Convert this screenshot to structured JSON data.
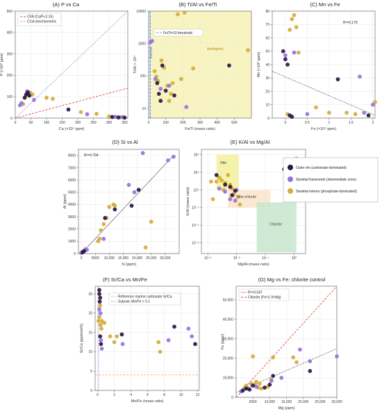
{
  "colors": {
    "outer": "#2b1747",
    "framework": "#9274e0",
    "interior": "#d4ad3c",
    "cfa": "#e0453c",
    "stoich": "#6b6bd8",
    "threshold": "#4f6fd4",
    "authigenic_fill": "#f6f2b6",
    "illite_fill": "#f3f19a",
    "illite_chlorite_fill": "#fbe3c8",
    "chlorite_fill": "#c6e5cd",
    "trend": "#444444",
    "ref": "#f0a040"
  },
  "chart_data": [
    {
      "id": "A",
      "type": "scatter",
      "title": "(A) P vs Ca",
      "xlabel": "Ca (×10⁴ ppm)",
      "ylabel": "P (×10³ ppm)",
      "xlim": [
        0,
        360
      ],
      "ylim": [
        0,
        500
      ],
      "xticks": [
        "0",
        "50",
        "100",
        "150",
        "200",
        "250",
        "300",
        "350"
      ],
      "yticks": [
        "0",
        "100",
        "200",
        "300",
        "400",
        "500"
      ],
      "legend": [
        "CFA (Ca/P≈2.15)",
        "CCA stoichiometric"
      ],
      "points": {
        "outer": [
          [
            30,
            95
          ],
          [
            35,
            110
          ],
          [
            40,
            120
          ],
          [
            45,
            105
          ],
          [
            170,
            40
          ],
          [
            310,
            5
          ],
          [
            330,
            3
          ],
          [
            350,
            2
          ]
        ],
        "framework": [
          [
            15,
            60
          ],
          [
            20,
            70
          ],
          [
            38,
            125
          ],
          [
            42,
            115
          ],
          [
            60,
            85
          ],
          [
            230,
            18
          ],
          [
            320,
            6
          ],
          [
            340,
            4
          ]
        ],
        "interior": [
          [
            25,
            65
          ],
          [
            32,
            100
          ],
          [
            36,
            112
          ],
          [
            44,
            120
          ],
          [
            48,
            118
          ],
          [
            55,
            110
          ],
          [
            100,
            95
          ],
          [
            120,
            90
          ],
          [
            210,
            28
          ],
          [
            260,
            20
          ],
          [
            300,
            8
          ],
          [
            345,
            5
          ]
        ]
      }
    },
    {
      "id": "B",
      "type": "scatter",
      "title": "(B) Ti/Al vs Fe/Ti",
      "xlabel": "Fe/Ti (mass ratio)",
      "ylabel": "Ti/Al × 10⁴",
      "xlim": [
        0,
        600
      ],
      "ylim": [
        5,
        10000
      ],
      "yscale": "log",
      "xticks": [
        "0",
        "100",
        "200",
        "300",
        "400",
        "500"
      ],
      "yticks": [
        "10",
        "100",
        "1000",
        "10000"
      ],
      "legend": [
        "Fe/Ti=10 threshold"
      ],
      "regions": [
        "Detrital",
        "Authigenic"
      ],
      "points": {
        "outer": [
          [
            50,
            60
          ],
          [
            60,
            28
          ],
          [
            70,
            17
          ],
          [
            80,
            210
          ],
          [
            100,
            35
          ],
          [
            150,
            25
          ],
          [
            470,
            210
          ]
        ],
        "framework": [
          [
            10,
            1100
          ],
          [
            20,
            1200
          ],
          [
            40,
            80
          ],
          [
            70,
            40
          ],
          [
            120,
            50
          ],
          [
            220,
            11
          ]
        ],
        "interior": [
          [
            35,
            140
          ],
          [
            45,
            95
          ],
          [
            55,
            70
          ],
          [
            75,
            300
          ],
          [
            90,
            180
          ],
          [
            110,
            50
          ],
          [
            120,
            17
          ],
          [
            130,
            28
          ],
          [
            140,
            60
          ],
          [
            170,
            8000
          ],
          [
            190,
            80
          ],
          [
            210,
            9000
          ],
          [
            260,
            170
          ],
          [
            580,
            620
          ]
        ]
      }
    },
    {
      "id": "C",
      "type": "scatter",
      "title": "(C) Mn vs Fe",
      "xlabel": "Fe (×10⁴ ppm)",
      "ylabel": "Mn (×10³ ppm)",
      "xlim": [
        -0.3,
        2.05
      ],
      "ylim": [
        0,
        80
      ],
      "xticks": [
        "0",
        "0.5",
        "1",
        "1.5",
        "2"
      ],
      "yticks": [
        "0",
        "10",
        "20",
        "30",
        "40",
        "50",
        "60",
        "70",
        "80"
      ],
      "r2": "R²=0.179",
      "points": {
        "outer": [
          [
            -0.05,
            50
          ],
          [
            0,
            44
          ],
          [
            0.05,
            40
          ],
          [
            0.1,
            2
          ],
          [
            0.15,
            1
          ],
          [
            1.2,
            29
          ],
          [
            1.9,
            2
          ]
        ],
        "framework": [
          [
            0,
            47
          ],
          [
            0.2,
            49
          ],
          [
            1.7,
            31
          ],
          [
            2.0,
            10
          ],
          [
            1.8,
            4
          ],
          [
            0.5,
            3
          ]
        ],
        "interior": [
          [
            0.05,
            3
          ],
          [
            0.1,
            66
          ],
          [
            0.15,
            74
          ],
          [
            0.2,
            77
          ],
          [
            0.25,
            68
          ],
          [
            0.3,
            49
          ],
          [
            0.7,
            8
          ],
          [
            1.0,
            4
          ],
          [
            1.4,
            4
          ],
          [
            1.6,
            3
          ],
          [
            2.05,
            12
          ]
        ]
      }
    },
    {
      "id": "D",
      "type": "scatter",
      "title": "(D) Si vs Al",
      "xlabel": "Si (ppm)",
      "ylabel": "Al (ppm)",
      "xlim": [
        -1000,
        35000
      ],
      "ylim": [
        0,
        8500
      ],
      "xticks": [
        "0",
        "5000",
        "10,000",
        "15,000",
        "20,000",
        "25,000",
        "30,000"
      ],
      "yticks": [
        "0",
        "1000",
        "2000",
        "3000",
        "4000",
        "5000",
        "6000",
        "7000",
        "8000"
      ],
      "r2": "R²=0.704",
      "points": {
        "outer": [
          [
            500,
            100
          ],
          [
            1000,
            200
          ],
          [
            8500,
            2900
          ],
          [
            12000,
            3600
          ],
          [
            18000,
            3900
          ],
          [
            20500,
            5200
          ]
        ],
        "framework": [
          [
            0,
            50
          ],
          [
            500,
            150
          ],
          [
            1500,
            350
          ],
          [
            2000,
            300
          ],
          [
            8000,
            1200
          ],
          [
            17000,
            5600
          ],
          [
            19000,
            5000
          ],
          [
            22000,
            8200
          ],
          [
            31000,
            7600
          ],
          [
            33000,
            7900
          ]
        ],
        "interior": [
          [
            300,
            80
          ],
          [
            800,
            150
          ],
          [
            6000,
            1000
          ],
          [
            6500,
            1200
          ],
          [
            7000,
            1900
          ],
          [
            8000,
            2400
          ],
          [
            9000,
            2900
          ],
          [
            10000,
            3800
          ],
          [
            11500,
            4000
          ],
          [
            12000,
            3900
          ],
          [
            23000,
            500
          ],
          [
            25000,
            2600
          ]
        ]
      }
    },
    {
      "id": "E",
      "type": "scatter",
      "title": "(E) K/Al vs Mg/Al",
      "xlabel": "Mg/Al (mass ratio)",
      "ylabel": "K/Al (mass ratio)",
      "xscale": "log",
      "yscale": "log",
      "xlim": [
        0.0006,
        2.5
      ],
      "ylim": [
        0.00025,
        200
      ],
      "xticks": [
        "10⁻³",
        "10⁻²",
        "10⁻¹",
        "10⁰"
      ],
      "yticks": [
        "10⁻³",
        "10⁻²",
        "10⁻¹",
        "10⁰",
        "10¹",
        "10²"
      ],
      "regions": [
        "Illite",
        "Illite-chlorite",
        "Chlorite"
      ],
      "legend": [
        "Outer rim (carbonate-dominated)",
        "Skeletal framework (intermediate zone)",
        "Skeletal interior (phosphate-dominated)"
      ],
      "points": {
        "outer": [
          [
            0.002,
            7
          ],
          [
            0.004,
            2
          ],
          [
            0.006,
            1.5
          ],
          [
            0.007,
            0.5
          ],
          [
            0.009,
            0.9
          ],
          [
            0.45,
            15
          ]
        ],
        "framework": [
          [
            0.0025,
            1.2
          ],
          [
            0.004,
            0.8
          ],
          [
            0.006,
            0.3
          ],
          [
            0.01,
            1
          ],
          [
            0.009,
            0.25
          ]
        ],
        "interior": [
          [
            0.0013,
            3
          ],
          [
            0.0015,
            0.3
          ],
          [
            0.002,
            3
          ],
          [
            0.0025,
            5
          ],
          [
            0.003,
            3.5
          ],
          [
            0.0035,
            1
          ],
          [
            0.004,
            2.5
          ],
          [
            0.005,
            7
          ],
          [
            0.006,
            2
          ],
          [
            0.007,
            1.2
          ],
          [
            0.008,
            0.6
          ],
          [
            0.011,
            0.4
          ],
          [
            0.013,
            0.15
          ],
          [
            0.8,
            30
          ],
          [
            1.2,
            60
          ]
        ]
      }
    },
    {
      "id": "F",
      "type": "scatter",
      "title": "(F) Sr/Ca vs Mn/Fe",
      "xlabel": "Mn/Fe (mass ratio)",
      "ylabel": "Sr/Ca (ppm/wt%)",
      "xlim": [
        -0.3,
        12.2
      ],
      "ylim": [
        0,
        27
      ],
      "xticks": [
        "0",
        "2",
        "4",
        "6",
        "8",
        "10",
        "12"
      ],
      "yticks": [
        "0",
        "5",
        "10",
        "15",
        "20",
        "25"
      ],
      "legend": [
        "Reference marine carbonate Sr/Ca",
        "Suboxic Mn/Fe > 0.1"
      ],
      "points": {
        "outer": [
          [
            0.2,
            26
          ],
          [
            0.2,
            25
          ],
          [
            0.3,
            24
          ],
          [
            0.25,
            23
          ],
          [
            0.3,
            14
          ],
          [
            0.4,
            12
          ],
          [
            2.9,
            14.5
          ],
          [
            9.2,
            16.5
          ],
          [
            11.7,
            12
          ]
        ],
        "framework": [
          [
            0.2,
            21
          ],
          [
            0.35,
            20
          ],
          [
            0.4,
            13
          ],
          [
            0.5,
            10.8
          ],
          [
            3.0,
            12
          ],
          [
            8.5,
            13
          ],
          [
            10.9,
            16
          ],
          [
            11.3,
            14
          ]
        ],
        "interior": [
          [
            0.1,
            18
          ],
          [
            0.2,
            19
          ],
          [
            0.3,
            22
          ],
          [
            0.35,
            17
          ],
          [
            0.45,
            16
          ],
          [
            0.5,
            18
          ],
          [
            0.8,
            17.5
          ],
          [
            1.5,
            14
          ],
          [
            2.0,
            12.5
          ],
          [
            2.3,
            14
          ],
          [
            7.3,
            12.5
          ],
          [
            7.5,
            10
          ]
        ]
      },
      "refs": {
        "srca": 4,
        "mnfe": 0.1
      }
    },
    {
      "id": "G",
      "type": "scatter",
      "title": "(G) Mg vs Fe: chlorite control",
      "xlabel": "Mg (ppm)",
      "ylabel": "Fe (ppm)",
      "xlim": [
        0,
        30000
      ],
      "ylim": [
        0,
        57000
      ],
      "xticks": [
        "5000",
        "10,000",
        "15,000",
        "20,000",
        "25,000",
        "30,000"
      ],
      "yticks": [
        "0",
        "10,000",
        "20,000",
        "30,000",
        "40,000",
        "50,000"
      ],
      "legend": [
        "R²=0.547",
        "Chlorite (Fe=1.9×Mg)"
      ],
      "points": {
        "outer": [
          [
            2000,
            3500
          ],
          [
            3000,
            4500
          ],
          [
            4000,
            4000
          ],
          [
            5000,
            6000
          ],
          [
            8500,
            5000
          ],
          [
            10000,
            6500
          ],
          [
            11000,
            11000
          ],
          [
            22000,
            13500
          ]
        ],
        "framework": [
          [
            1500,
            3000
          ],
          [
            3500,
            4500
          ],
          [
            6000,
            5500
          ],
          [
            10500,
            8500
          ],
          [
            13500,
            10000
          ],
          [
            19000,
            24500
          ],
          [
            22000,
            18500
          ],
          [
            30000,
            21000
          ]
        ],
        "interior": [
          [
            2500,
            5000
          ],
          [
            3000,
            6000
          ],
          [
            4500,
            7000
          ],
          [
            5000,
            21000
          ],
          [
            5500,
            6500
          ],
          [
            6000,
            8000
          ],
          [
            6500,
            5000
          ],
          [
            7000,
            7000
          ],
          [
            7500,
            4500
          ],
          [
            9500,
            5500
          ],
          [
            10500,
            9000
          ],
          [
            11000,
            20500
          ],
          [
            17000,
            20500
          ],
          [
            18000,
            18000
          ]
        ]
      }
    }
  ]
}
